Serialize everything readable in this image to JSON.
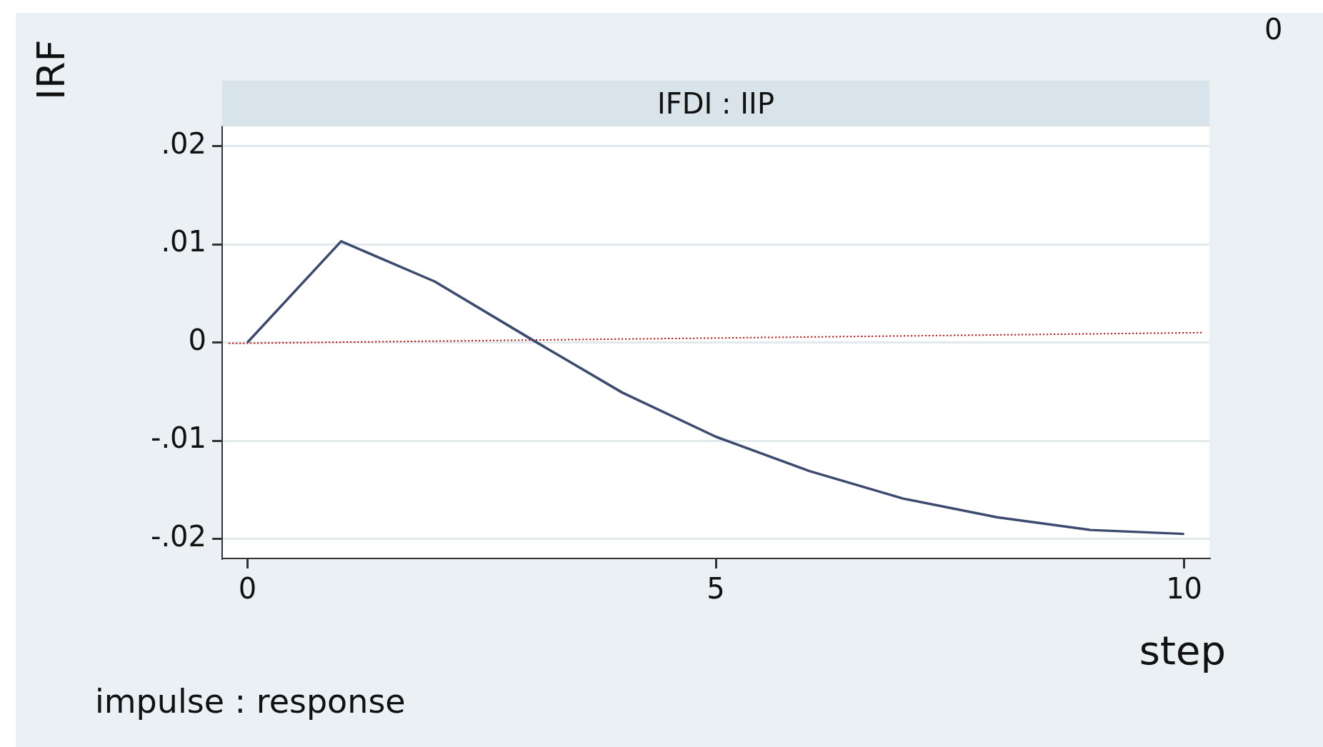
{
  "chart_data": {
    "type": "line",
    "title": "IFDI : IIP",
    "xlabel": "step",
    "ylabel": "IRF",
    "annotations": [
      "impulse : response",
      "0"
    ],
    "x": [
      0,
      1,
      2,
      3,
      4,
      5,
      6,
      7,
      8,
      9,
      10
    ],
    "series": [
      {
        "color": "#3b4a6e",
        "values": [
          0,
          0.0103,
          0.0062,
          0.0005,
          -0.0051,
          -0.0096,
          -0.0131,
          -0.0159,
          -0.0178,
          -0.0191,
          -0.0195
        ]
      },
      {
        "color": "#cc0000",
        "line_style": "dotted",
        "x": [
          -0.2,
          10.2
        ],
        "values": [
          -0.0001,
          0.001
        ]
      }
    ],
    "xlim": [
      -0.27,
      10.27
    ],
    "ylim": [
      -0.022,
      0.022
    ],
    "xticks": [
      0,
      5,
      10
    ],
    "yticks": [
      {
        "value": -0.02,
        "label": "-.02"
      },
      {
        "value": -0.01,
        "label": "-.01"
      },
      0,
      {
        "value": 0.01,
        "label": ".01"
      },
      {
        "value": 0.02,
        "label": ".02"
      }
    ],
    "grid": "y",
    "legend": false
  }
}
